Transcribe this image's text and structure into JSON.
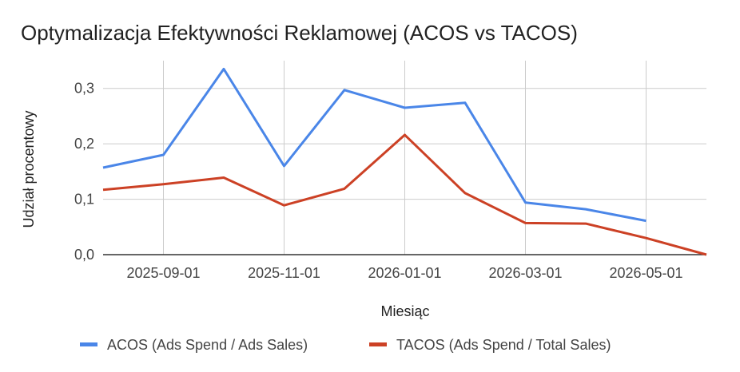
{
  "chart_data": {
    "type": "line",
    "title": "Optymalizacja Efektywności Reklamowej (ACOS vs TACOS)",
    "xlabel": "Miesiąc",
    "ylabel": "Udział procentowy",
    "x": [
      "2025-08-01",
      "2025-09-01",
      "2025-10-01",
      "2025-11-01",
      "2025-12-01",
      "2026-01-01",
      "2026-02-01",
      "2026-03-01",
      "2026-04-01",
      "2026-05-01",
      "2026-06-01"
    ],
    "x_tick_labels": [
      "2025-09-01",
      "2025-11-01",
      "2026-01-01",
      "2026-03-01",
      "2026-05-01"
    ],
    "y_ticks": [
      0,
      0.1,
      0.2,
      0.3
    ],
    "y_tick_labels": [
      "0,0",
      "0,1",
      "0,2",
      "0,3"
    ],
    "ylim": [
      0,
      0.35
    ],
    "grid": true,
    "legend_position": "bottom",
    "series": [
      {
        "name": "ACOS (Ads Spend / Ads Sales)",
        "color": "#4a86e8",
        "values": [
          0.157,
          0.18,
          0.335,
          0.16,
          0.297,
          0.265,
          0.274,
          0.094,
          0.082,
          0.061,
          null
        ]
      },
      {
        "name": "TACOS (Ads Spend / Total Sales)",
        "color": "#cc4125",
        "values": [
          0.117,
          0.127,
          0.139,
          0.089,
          0.119,
          0.216,
          0.111,
          0.057,
          0.056,
          0.03,
          0.0
        ]
      }
    ]
  }
}
